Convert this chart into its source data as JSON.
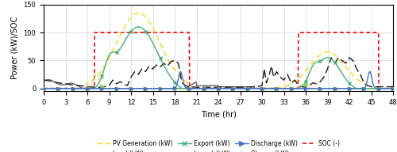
{
  "title": "",
  "xlabel": "Time (hr)",
  "ylabel": "Power (kW)/SOC",
  "xlim": [
    0,
    48
  ],
  "ylim": [
    -5,
    150
  ],
  "xticks": [
    0,
    3,
    6,
    9,
    12,
    15,
    18,
    21,
    24,
    27,
    30,
    33,
    36,
    39,
    42,
    45,
    48
  ],
  "yticks": [
    0,
    50,
    100,
    150
  ],
  "pv_color": "#FFD700",
  "load_color": "#1a1a1a",
  "export_color": "#3CB371",
  "import_color": "#555555",
  "discharge_color": "#4472C4",
  "charge_color": "#92D050",
  "soc_color": "#FF0000",
  "figsize": [
    5.0,
    1.92
  ],
  "dpi": 100
}
